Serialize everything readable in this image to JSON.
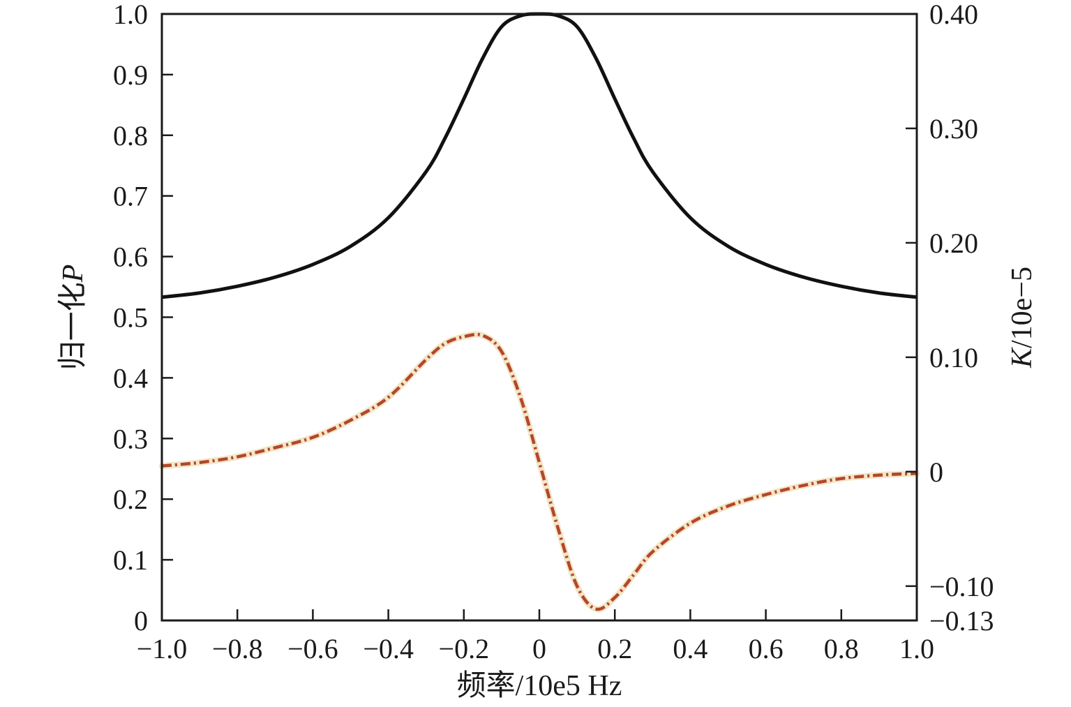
{
  "chart_data": {
    "type": "line",
    "title": "",
    "xlabel": "频率/10e5 Hz",
    "ylabel_left": {
      "text": "归一化",
      "var": "P"
    },
    "ylabel_right": {
      "var": "K",
      "text": "/10e−5"
    },
    "xlim": [
      -1.0,
      1.0
    ],
    "ylim_left": [
      0,
      1.0
    ],
    "ylim_right": [
      -0.13,
      0.4
    ],
    "grid": false,
    "legend": "none",
    "x_ticks": [
      {
        "value": -1.0,
        "label": "−1.0"
      },
      {
        "value": -0.8,
        "label": "−0.8"
      },
      {
        "value": -0.6,
        "label": "−0.6"
      },
      {
        "value": -0.4,
        "label": "−0.4"
      },
      {
        "value": -0.2,
        "label": "−0.2"
      },
      {
        "value": 0,
        "label": "0"
      },
      {
        "value": 0.2,
        "label": "0.2"
      },
      {
        "value": 0.4,
        "label": "0.4"
      },
      {
        "value": 0.6,
        "label": "0.6"
      },
      {
        "value": 0.8,
        "label": "0.8"
      },
      {
        "value": 1.0,
        "label": "1.0"
      }
    ],
    "y_ticks_left": [
      {
        "value": 0,
        "label": "0"
      },
      {
        "value": 0.1,
        "label": "0.1"
      },
      {
        "value": 0.2,
        "label": "0.2"
      },
      {
        "value": 0.3,
        "label": "0.3"
      },
      {
        "value": 0.4,
        "label": "0.4"
      },
      {
        "value": 0.5,
        "label": "0.5"
      },
      {
        "value": 0.6,
        "label": "0.6"
      },
      {
        "value": 0.7,
        "label": "0.7"
      },
      {
        "value": 0.8,
        "label": "0.8"
      },
      {
        "value": 0.9,
        "label": "0.9"
      },
      {
        "value": 1.0,
        "label": "1.0"
      }
    ],
    "y_ticks_right": [
      {
        "value": -0.13,
        "label": "−0.13"
      },
      {
        "value": -0.1,
        "label": "−0.10"
      },
      {
        "value": 0,
        "label": "0"
      },
      {
        "value": 0.1,
        "label": "0.10"
      },
      {
        "value": 0.2,
        "label": "0.20"
      },
      {
        "value": 0.3,
        "label": "0.30"
      },
      {
        "value": 0.4,
        "label": "0.40"
      }
    ],
    "series": [
      {
        "axis": "left",
        "style": "solid",
        "color": "#111111",
        "x": [
          -1.0,
          -0.9,
          -0.8,
          -0.7,
          -0.6,
          -0.5,
          -0.4,
          -0.3,
          -0.25,
          -0.2,
          -0.15,
          -0.1,
          -0.05,
          0,
          0.05,
          0.1,
          0.15,
          0.2,
          0.25,
          0.3,
          0.4,
          0.5,
          0.6,
          0.7,
          0.8,
          0.9,
          1.0
        ],
        "y": [
          0.533,
          0.54,
          0.551,
          0.566,
          0.587,
          0.617,
          0.664,
          0.74,
          0.795,
          0.86,
          0.927,
          0.979,
          0.997,
          1.0,
          0.997,
          0.979,
          0.927,
          0.86,
          0.795,
          0.74,
          0.664,
          0.617,
          0.587,
          0.566,
          0.551,
          0.54,
          0.533
        ]
      },
      {
        "axis": "right",
        "style": "dash-dot",
        "color": "#b5462a",
        "x": [
          -1.0,
          -0.9,
          -0.8,
          -0.7,
          -0.6,
          -0.5,
          -0.4,
          -0.3,
          -0.25,
          -0.2,
          -0.15,
          -0.1,
          -0.05,
          0,
          0.05,
          0.1,
          0.15,
          0.2,
          0.25,
          0.3,
          0.4,
          0.5,
          0.6,
          0.7,
          0.8,
          0.9,
          1.0
        ],
        "y": [
          0.005,
          0.008,
          0.013,
          0.021,
          0.03,
          0.045,
          0.065,
          0.098,
          0.112,
          0.118,
          0.119,
          0.105,
          0.065,
          0.008,
          -0.05,
          -0.1,
          -0.12,
          -0.11,
          -0.09,
          -0.07,
          -0.045,
          -0.03,
          -0.02,
          -0.012,
          -0.006,
          -0.003,
          -0.0015
        ]
      }
    ]
  }
}
